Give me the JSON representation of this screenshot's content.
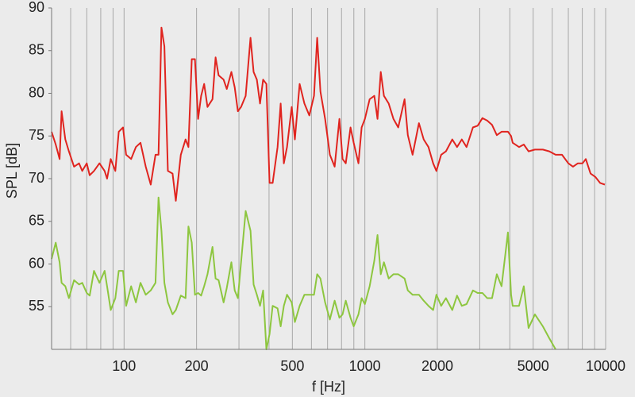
{
  "chart_data": {
    "type": "line",
    "x_label": "f [Hz]",
    "y_label": "SPL [dB]",
    "x_log": true,
    "x_grid": true,
    "y_grid": false,
    "xlim": [
      50,
      10000
    ],
    "xticks": [
      100,
      200,
      500,
      1000,
      2000,
      5000,
      10000
    ],
    "ylim": [
      50,
      90
    ],
    "yticks": [
      55,
      60,
      65,
      70,
      75,
      80,
      85,
      90
    ],
    "x": [
      50,
      52,
      54,
      55,
      57,
      59,
      62,
      65,
      67,
      70,
      72,
      75,
      79,
      83,
      85,
      88,
      92,
      95,
      99,
      102,
      107,
      112,
      117,
      123,
      129,
      135,
      139,
      143,
      147,
      152,
      159,
      164,
      172,
      180,
      185,
      191,
      197,
      203,
      209,
      215,
      222,
      233,
      240,
      247,
      259,
      267,
      279,
      288,
      297,
      306,
      320,
      335,
      345,
      356,
      367,
      378,
      390,
      402,
      414,
      434,
      447,
      461,
      475,
      497,
      512,
      536,
      561,
      588,
      615,
      634,
      654,
      684,
      716,
      749,
      784,
      808,
      833,
      872,
      899,
      941,
      970,
      1000,
      1047,
      1095,
      1129,
      1164,
      1200,
      1256,
      1315,
      1376,
      1462,
      1508,
      1578,
      1677,
      1755,
      1837,
      1922,
      1982,
      2075,
      2172,
      2307,
      2415,
      2527,
      2645,
      2811,
      2942,
      3079,
      3223,
      3374,
      3531,
      3696,
      3927,
      4049,
      4111,
      4368,
      4572,
      4786,
      5084,
      5487,
      5832,
      6197,
      6585,
      6997,
      7321,
      7664,
      8021,
      8270,
      8655,
      9059,
      9483,
      9924
    ],
    "series": [
      {
        "color": "#e0241f",
        "values": [
          75.5,
          74,
          72.3,
          77.9,
          74.6,
          73.2,
          71.4,
          71.8,
          70.9,
          71.8,
          70.4,
          70.9,
          71.8,
          70.9,
          70,
          72.3,
          70.9,
          75.5,
          76,
          72.8,
          72.3,
          73.7,
          74.2,
          71.4,
          69.3,
          72.8,
          72.8,
          87.7,
          85.5,
          70.9,
          70.6,
          67.4,
          72.8,
          74.6,
          73.7,
          84,
          84,
          77,
          79.7,
          81.1,
          78.4,
          79.3,
          84.2,
          82.1,
          81.6,
          80.5,
          82.5,
          80.7,
          77.9,
          78.4,
          79.7,
          86.5,
          82.5,
          81.6,
          78.8,
          81.6,
          81.1,
          69.5,
          69.5,
          73.7,
          78.8,
          71.8,
          73.7,
          78.4,
          74.6,
          81.1,
          78.8,
          77.4,
          79.7,
          86.5,
          80.2,
          77,
          72.8,
          71.4,
          77,
          72.3,
          71.8,
          76,
          74.2,
          71.8,
          76,
          77,
          79.3,
          79.7,
          77,
          82.5,
          79.7,
          78.8,
          77,
          76,
          79.3,
          75.1,
          72.8,
          76.5,
          74.6,
          73.7,
          71.8,
          70.9,
          72.8,
          73.2,
          74.6,
          73.7,
          74.6,
          73.7,
          76,
          76.2,
          77.1,
          76.8,
          76.3,
          75.1,
          75.5,
          75.5,
          75,
          74.2,
          73.7,
          74,
          73.2,
          73.4,
          73.4,
          73.2,
          72.8,
          72.8,
          71.8,
          71.4,
          71.8,
          71.8,
          72.3,
          70.6,
          70.2,
          69.5,
          69.3
        ]
      },
      {
        "color": "#8dc63f",
        "values": [
          60.6,
          62.5,
          60.2,
          57.8,
          57.4,
          56,
          58.1,
          57.6,
          57.8,
          56.6,
          56.3,
          59.2,
          57.8,
          59.2,
          57.4,
          54.6,
          56,
          59.2,
          59.2,
          55.1,
          57.4,
          55.5,
          57.8,
          56.4,
          56.9,
          57.8,
          67.8,
          63.9,
          57.8,
          55.5,
          54.1,
          54.6,
          56.3,
          56,
          64.4,
          62.5,
          56.4,
          56.6,
          56.3,
          57.4,
          58.8,
          62,
          58.3,
          58.1,
          55.5,
          57.2,
          60.2,
          56.9,
          56,
          60.2,
          66.2,
          63.9,
          57.6,
          56.4,
          55.1,
          56.9,
          50,
          51.8,
          55.1,
          54.8,
          52.7,
          55.1,
          56.4,
          55.5,
          53.2,
          55.1,
          56.4,
          56.4,
          56.4,
          58.8,
          58.3,
          55.5,
          53.5,
          55.7,
          53.7,
          54.1,
          55.7,
          53.7,
          52.7,
          54.1,
          56,
          55.3,
          57.4,
          60.4,
          63.4,
          58.8,
          60.2,
          58.3,
          58.8,
          58.8,
          58.3,
          56.9,
          56.4,
          56.4,
          55.7,
          55.1,
          54.6,
          56.4,
          55.1,
          56,
          54.6,
          56.3,
          55.1,
          55.3,
          56.9,
          56.6,
          56.6,
          56,
          56,
          58.8,
          57.4,
          63.7,
          56.4,
          55.1,
          55.1,
          57.4,
          52.5,
          54.1,
          52.7,
          51.3,
          50,
          null,
          null,
          null,
          null,
          null,
          null,
          null,
          null,
          null,
          null
        ]
      }
    ]
  }
}
